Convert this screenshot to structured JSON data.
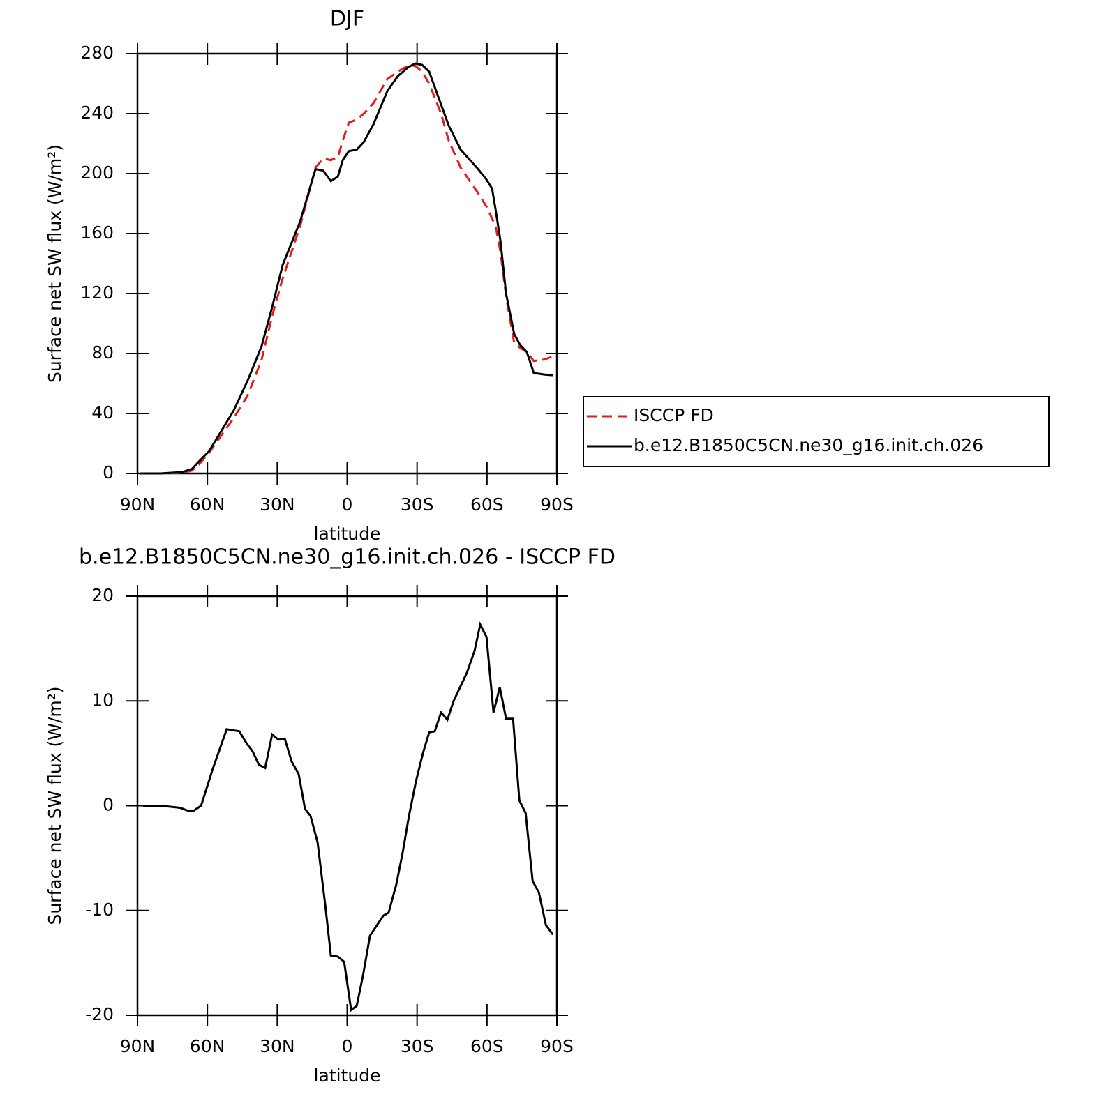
{
  "chart_data": [
    {
      "type": "line",
      "title": "DJF",
      "x_label": "latitude",
      "y_label": "Surface net SW flux (W/m²)",
      "x": [
        89.1,
        80.1,
        70.5,
        66.6,
        63.6,
        59.2,
        48.7,
        42.7,
        36.7,
        32.2,
        27.7,
        20.2,
        13.6,
        10.3,
        7.0,
        4.0,
        1.9,
        -0.7,
        -4.1,
        -7.1,
        -11.3,
        -17.2,
        -21.7,
        -26.2,
        -29.2,
        -32.2,
        -35.2,
        -40.3,
        -43.6,
        -48.7,
        -56.2,
        -59.8,
        -62.2,
        -63.7,
        -65.8,
        -68.2,
        -71.7,
        -74.1,
        -77.1,
        -80.1,
        -84.6,
        -88.2
      ],
      "series": [
        {
          "name": "ISCCP FD",
          "color": "#e41a1c",
          "dashed": true,
          "values": [
            0,
            0,
            0.5,
            2,
            6,
            14,
            37,
            52,
            76,
            105,
            130,
            165,
            204,
            210,
            209,
            211,
            222,
            234,
            236,
            240,
            247,
            263,
            268,
            272,
            272,
            268,
            260,
            240,
            222,
            204,
            187,
            178,
            170,
            165,
            148,
            118,
            87,
            84,
            81,
            75,
            76,
            78
          ]
        },
        {
          "name": "b.e12.B1850C5CN.ne30_g16.init.ch.026",
          "color": "#000000",
          "dashed": false,
          "values": [
            0,
            0,
            1,
            3,
            8,
            15,
            42,
            62,
            85,
            111,
            139,
            168,
            203,
            202,
            195,
            198,
            209,
            215,
            216,
            221,
            233,
            255,
            265,
            271,
            273.5,
            272.5,
            268,
            246,
            232,
            216,
            203,
            196,
            190,
            176,
            155,
            120,
            93,
            86,
            81,
            67,
            66,
            65.5
          ]
        }
      ],
      "xlim": [
        90,
        -90
      ],
      "xticks": [
        {
          "value": 90,
          "label": "90N"
        },
        {
          "value": 60,
          "label": "60N"
        },
        {
          "value": 30,
          "label": "30N"
        },
        0,
        {
          "value": -30,
          "label": "30S"
        },
        {
          "value": -60,
          "label": "60S"
        },
        {
          "value": -90,
          "label": "90S"
        }
      ],
      "ylim": [
        0,
        280
      ],
      "yticks": [
        0,
        40,
        80,
        120,
        160,
        200,
        240,
        280
      ],
      "legend": "right"
    },
    {
      "type": "line",
      "title": "b.e12.B1850C5CN.ne30_g16.init.ch.026 - ISCCP FD",
      "x_label": "latitude",
      "y_label": "Surface net SW flux (W/m²)",
      "x": [
        87.6,
        80.1,
        71.7,
        68.1,
        66.0,
        62.7,
        57.7,
        51.7,
        46.3,
        43.0,
        40.6,
        37.9,
        35.2,
        32.2,
        29.5,
        26.8,
        23.8,
        20.8,
        18.1,
        15.7,
        12.7,
        9.4,
        7.0,
        4.0,
        1.3,
        -1.7,
        -4.1,
        -6.8,
        -9.8,
        -15.5,
        -17.8,
        -21.1,
        -23.8,
        -26.5,
        -29.5,
        -32.5,
        -35.2,
        -37.6,
        -40.3,
        -43.0,
        -45.7,
        -51.4,
        -54.7,
        -57.1,
        -59.8,
        -62.8,
        -65.5,
        -68.2,
        -71.2,
        -73.9,
        -76.6,
        -79.6,
        -82.3,
        -85.3,
        -88.3
      ],
      "series": [
        {
          "color": "#000000",
          "dashed": false,
          "values": [
            0,
            0,
            -0.2,
            -0.5,
            -0.5,
            0,
            3.5,
            7.3,
            7.1,
            5.9,
            5.2,
            3.9,
            3.6,
            6.8,
            6.3,
            6.4,
            4.2,
            3,
            -0.3,
            -1,
            -3.5,
            -9.5,
            -14.3,
            -14.4,
            -14.9,
            -19.5,
            -19.1,
            -16.2,
            -12.4,
            -10.5,
            -10.2,
            -7.5,
            -4.5,
            -1,
            2.3,
            5,
            7,
            7.1,
            8.9,
            8.2,
            10,
            12.7,
            14.8,
            17.3,
            16.1,
            8.9,
            11.3,
            8.3,
            8.3,
            0.5,
            -0.7,
            -7.2,
            -8.3,
            -11.4,
            -12.3
          ]
        }
      ],
      "xlim": [
        90,
        -90
      ],
      "xticks": [
        {
          "value": 90,
          "label": "90N"
        },
        {
          "value": 60,
          "label": "60N"
        },
        {
          "value": 30,
          "label": "30N"
        },
        0,
        {
          "value": -30,
          "label": "30S"
        },
        {
          "value": -60,
          "label": "60S"
        },
        {
          "value": -90,
          "label": "90S"
        }
      ],
      "ylim": [
        -20,
        20
      ],
      "yticks": [
        -20,
        -10,
        0,
        10,
        20
      ]
    }
  ]
}
